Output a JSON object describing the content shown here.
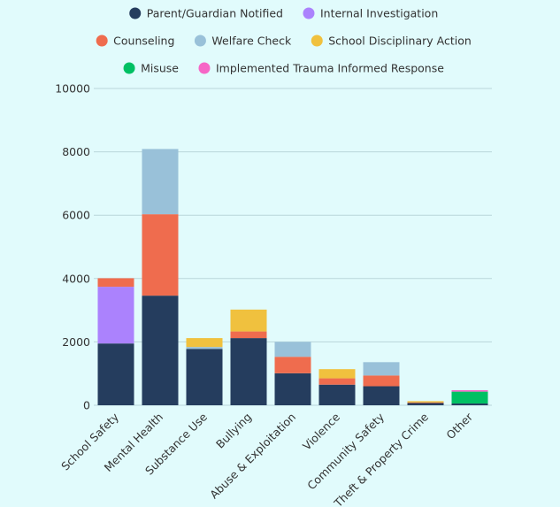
{
  "chart_data": {
    "type": "bar",
    "stacked": true,
    "title": "",
    "xlabel": "",
    "ylabel": "",
    "ylim": [
      0,
      10000
    ],
    "yticks": [
      0,
      2000,
      4000,
      6000,
      8000,
      10000
    ],
    "grid": true,
    "legend_position": "top",
    "categories": [
      "School Safety",
      "Mental Health",
      "Substance Use",
      "Bullying",
      "Abuse & Exploitation",
      "Violence",
      "Community Safety",
      "Theft & Property Crime",
      "Other"
    ],
    "series": [
      {
        "name": "Parent/Guardian Notified",
        "color": "#253d5e",
        "values": [
          1950,
          3460,
          1780,
          2120,
          1010,
          650,
          600,
          70,
          55
        ]
      },
      {
        "name": "Internal Investigation",
        "color": "#ab82fd",
        "values": [
          1790,
          0,
          0,
          0,
          0,
          0,
          0,
          0,
          0
        ]
      },
      {
        "name": "Counseling",
        "color": "#ef6c4e",
        "values": [
          270,
          2570,
          0,
          210,
          520,
          200,
          340,
          20,
          0
        ]
      },
      {
        "name": "Welfare Check",
        "color": "#99c1d9",
        "values": [
          0,
          2060,
          60,
          0,
          470,
          0,
          420,
          0,
          0
        ]
      },
      {
        "name": "School Disciplinary Action",
        "color": "#f0c13e",
        "values": [
          0,
          0,
          280,
          690,
          0,
          290,
          0,
          40,
          0
        ]
      },
      {
        "name": "Misuse",
        "color": "#00c063",
        "values": [
          0,
          0,
          0,
          0,
          0,
          0,
          0,
          0,
          375
        ]
      },
      {
        "name": "Implemented Trauma Informed Response",
        "color": "#f666c6",
        "values": [
          0,
          0,
          0,
          0,
          0,
          0,
          0,
          0,
          45
        ]
      }
    ]
  }
}
